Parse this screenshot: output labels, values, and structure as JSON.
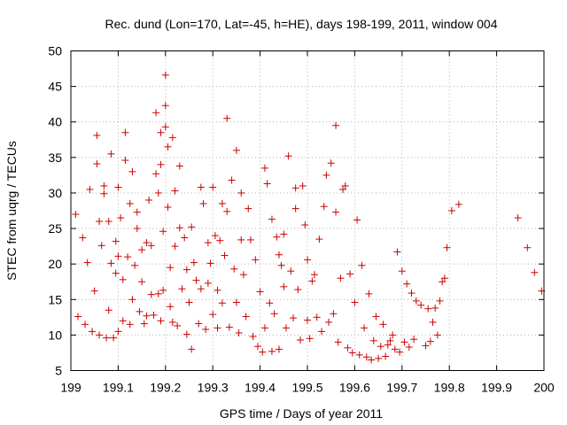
{
  "chart_data": {
    "type": "scatter",
    "title": "Rec. dund (Lon=170, Lat=-45, h=HE), days 198-199, 2011, window 004",
    "xlabel": "GPS time / Days of year 2011",
    "ylabel": "STEC from uqrg / TECUs",
    "xlim": [
      199,
      200
    ],
    "ylim": [
      5,
      50
    ],
    "xticks": [
      199,
      199.1,
      199.2,
      199.3,
      199.4,
      199.5,
      199.6,
      199.7,
      199.8,
      199.9,
      200
    ],
    "xtick_labels": [
      "199",
      "199.1",
      "199.2",
      "199.3",
      "199.4",
      "199.5",
      "199.6",
      "199.7",
      "199.8",
      "199.9",
      "200"
    ],
    "yticks": [
      5,
      10,
      15,
      20,
      25,
      30,
      35,
      40,
      45,
      50
    ],
    "ytick_labels": [
      "5",
      "10",
      "15",
      "20",
      "25",
      "30",
      "35",
      "40",
      "45",
      "50"
    ],
    "grid": true,
    "marker": "+",
    "marker_color": "#cc0000",
    "series": [
      {
        "name": "STEC",
        "points": [
          [
            199.01,
            27
          ],
          [
            199.015,
            12.6
          ],
          [
            199.025,
            23.7
          ],
          [
            199.03,
            11.5
          ],
          [
            199.035,
            20.2
          ],
          [
            199.04,
            30.5
          ],
          [
            199.045,
            10.5
          ],
          [
            199.05,
            16.2
          ],
          [
            199.055,
            38.1
          ],
          [
            199.055,
            34.1
          ],
          [
            199.06,
            26
          ],
          [
            199.06,
            10
          ],
          [
            199.065,
            22.6
          ],
          [
            199.07,
            31
          ],
          [
            199.07,
            29.9
          ],
          [
            199.075,
            9.6
          ],
          [
            199.08,
            26
          ],
          [
            199.08,
            13.5
          ],
          [
            199.085,
            35.5
          ],
          [
            199.085,
            20.1
          ],
          [
            199.09,
            9.6
          ],
          [
            199.095,
            18.7
          ],
          [
            199.095,
            23.2
          ],
          [
            199.1,
            30.8
          ],
          [
            199.1,
            21.1
          ],
          [
            199.1,
            10.5
          ],
          [
            199.105,
            26.5
          ],
          [
            199.11,
            17.8
          ],
          [
            199.11,
            12
          ],
          [
            199.115,
            38.5
          ],
          [
            199.115,
            34.6
          ],
          [
            199.12,
            21
          ],
          [
            199.125,
            28.5
          ],
          [
            199.125,
            11.5
          ],
          [
            199.13,
            33
          ],
          [
            199.13,
            15
          ],
          [
            199.135,
            19.8
          ],
          [
            199.14,
            25
          ],
          [
            199.14,
            27.3
          ],
          [
            199.145,
            13.3
          ],
          [
            199.15,
            22
          ],
          [
            199.15,
            17.5
          ],
          [
            199.155,
            11.6
          ],
          [
            199.16,
            23
          ],
          [
            199.16,
            12.7
          ],
          [
            199.165,
            29
          ],
          [
            199.17,
            22.6
          ],
          [
            199.17,
            15.7
          ],
          [
            199.175,
            12.8
          ],
          [
            199.18,
            41.3
          ],
          [
            199.18,
            32.7
          ],
          [
            199.185,
            30
          ],
          [
            199.185,
            15.8
          ],
          [
            199.19,
            38.5
          ],
          [
            199.19,
            34
          ],
          [
            199.19,
            12
          ],
          [
            199.195,
            24.6
          ],
          [
            199.195,
            16.3
          ],
          [
            199.2,
            46.6
          ],
          [
            199.2,
            42.3
          ],
          [
            199.2,
            39.3
          ],
          [
            199.205,
            36.5
          ],
          [
            199.205,
            28
          ],
          [
            199.21,
            19.5
          ],
          [
            199.21,
            14
          ],
          [
            199.215,
            37.8
          ],
          [
            199.215,
            11.8
          ],
          [
            199.22,
            30.3
          ],
          [
            199.22,
            22.5
          ],
          [
            199.225,
            11.3
          ],
          [
            199.23,
            33.8
          ],
          [
            199.23,
            25.1
          ],
          [
            199.235,
            16.5
          ],
          [
            199.24,
            23.7
          ],
          [
            199.245,
            19.2
          ],
          [
            199.245,
            10.1
          ],
          [
            199.25,
            14.6
          ],
          [
            199.255,
            25.2
          ],
          [
            199.255,
            8
          ],
          [
            199.26,
            20.2
          ],
          [
            199.265,
            17.7
          ],
          [
            199.27,
            11.6
          ],
          [
            199.275,
            30.8
          ],
          [
            199.275,
            16.5
          ],
          [
            199.28,
            28.5
          ],
          [
            199.285,
            10.8
          ],
          [
            199.29,
            23
          ],
          [
            199.29,
            17.3
          ],
          [
            199.295,
            20.1
          ],
          [
            199.3,
            30.8
          ],
          [
            199.3,
            12.9
          ],
          [
            199.305,
            24
          ],
          [
            199.31,
            16.3
          ],
          [
            199.31,
            11
          ],
          [
            199.315,
            23.3
          ],
          [
            199.32,
            28.5
          ],
          [
            199.32,
            14.5
          ],
          [
            199.325,
            21.2
          ],
          [
            199.33,
            40.5
          ],
          [
            199.33,
            27.4
          ],
          [
            199.335,
            11.1
          ],
          [
            199.34,
            31.8
          ],
          [
            199.345,
            19.3
          ],
          [
            199.35,
            36
          ],
          [
            199.35,
            14.6
          ],
          [
            199.355,
            10.3
          ],
          [
            199.36,
            30
          ],
          [
            199.36,
            23.4
          ],
          [
            199.365,
            18.5
          ],
          [
            199.37,
            12.6
          ],
          [
            199.375,
            27.8
          ],
          [
            199.38,
            23.4
          ],
          [
            199.385,
            9.8
          ],
          [
            199.39,
            20.6
          ],
          [
            199.395,
            8.4
          ],
          [
            199.4,
            16.1
          ],
          [
            199.405,
            7.6
          ],
          [
            199.41,
            33.5
          ],
          [
            199.41,
            11
          ],
          [
            199.415,
            31.3
          ],
          [
            199.42,
            14.5
          ],
          [
            199.425,
            26.3
          ],
          [
            199.425,
            7.7
          ],
          [
            199.43,
            13
          ],
          [
            199.435,
            23.8
          ],
          [
            199.44,
            21.3
          ],
          [
            199.44,
            8
          ],
          [
            199.445,
            19.8
          ],
          [
            199.45,
            24.2
          ],
          [
            199.45,
            16.8
          ],
          [
            199.455,
            11
          ],
          [
            199.46,
            35.2
          ],
          [
            199.465,
            19
          ],
          [
            199.47,
            12.4
          ],
          [
            199.475,
            30.7
          ],
          [
            199.475,
            27.8
          ],
          [
            199.48,
            16.4
          ],
          [
            199.485,
            9.3
          ],
          [
            199.49,
            31
          ],
          [
            199.495,
            25.5
          ],
          [
            199.5,
            20.6
          ],
          [
            199.5,
            12.1
          ],
          [
            199.505,
            9.5
          ],
          [
            199.51,
            17.6
          ],
          [
            199.515,
            18.5
          ],
          [
            199.52,
            12.5
          ],
          [
            199.525,
            23.5
          ],
          [
            199.53,
            10.5
          ],
          [
            199.535,
            28.1
          ],
          [
            199.54,
            32.5
          ],
          [
            199.545,
            11.8
          ],
          [
            199.55,
            34.2
          ],
          [
            199.555,
            13
          ],
          [
            199.56,
            39.5
          ],
          [
            199.56,
            27.3
          ],
          [
            199.565,
            9
          ],
          [
            199.57,
            18
          ],
          [
            199.575,
            30.5
          ],
          [
            199.58,
            31
          ],
          [
            199.585,
            8.2
          ],
          [
            199.59,
            18.6
          ],
          [
            199.595,
            7.5
          ],
          [
            199.6,
            14.6
          ],
          [
            199.605,
            26.2
          ],
          [
            199.61,
            7.2
          ],
          [
            199.615,
            19.8
          ],
          [
            199.62,
            11
          ],
          [
            199.625,
            6.9
          ],
          [
            199.63,
            15.8
          ],
          [
            199.635,
            6.5
          ],
          [
            199.64,
            9.2
          ],
          [
            199.645,
            12.6
          ],
          [
            199.65,
            6.7
          ],
          [
            199.655,
            8.4
          ],
          [
            199.66,
            11.5
          ],
          [
            199.665,
            7
          ],
          [
            199.67,
            8.6
          ],
          [
            199.675,
            9.2
          ],
          [
            199.68,
            10
          ],
          [
            199.685,
            8
          ],
          [
            199.69,
            21.7
          ],
          [
            199.695,
            7.6
          ],
          [
            199.7,
            19
          ],
          [
            199.705,
            9
          ],
          [
            199.71,
            17.2
          ],
          [
            199.715,
            8.3
          ],
          [
            199.72,
            15.9
          ],
          [
            199.725,
            9.4
          ],
          [
            199.73,
            14.8
          ],
          [
            199.74,
            14.2
          ],
          [
            199.75,
            8.5
          ],
          [
            199.755,
            13.7
          ],
          [
            199.76,
            9.1
          ],
          [
            199.765,
            11.8
          ],
          [
            199.77,
            13.8
          ],
          [
            199.775,
            10
          ],
          [
            199.78,
            14.8
          ],
          [
            199.785,
            17.5
          ],
          [
            199.79,
            18
          ],
          [
            199.795,
            22.3
          ],
          [
            199.805,
            27.5
          ],
          [
            199.82,
            28.4
          ],
          [
            199.945,
            26.5
          ],
          [
            199.965,
            22.3
          ],
          [
            199.98,
            18.8
          ],
          [
            199.995,
            16.2
          ]
        ]
      }
    ]
  }
}
